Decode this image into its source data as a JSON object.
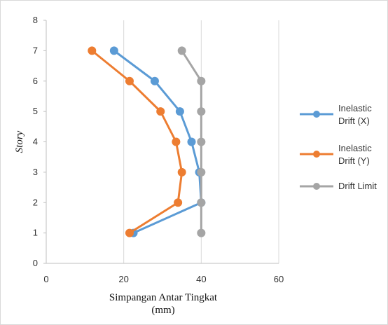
{
  "chart_data": {
    "type": "line",
    "title": "",
    "xlabel_lines": [
      "Simpangan Antar Tingkat",
      "(mm)"
    ],
    "ylabel": "Story",
    "xlim": [
      0,
      60
    ],
    "ylim": [
      0,
      8
    ],
    "x_ticks": [
      0,
      20,
      40,
      60
    ],
    "y_ticks": [
      0,
      1,
      2,
      3,
      4,
      5,
      6,
      7,
      8
    ],
    "grid": "vertical",
    "legend_position": "right",
    "series": [
      {
        "name_lines": [
          "Inelastic",
          "Drift (X)"
        ],
        "color": "#5B9BD5",
        "points": [
          [
            22.5,
            1
          ],
          [
            40,
            2
          ],
          [
            39.5,
            3
          ],
          [
            37.5,
            4
          ],
          [
            34.5,
            5
          ],
          [
            28,
            6
          ],
          [
            17.5,
            7
          ]
        ]
      },
      {
        "name_lines": [
          "Inelastic",
          "Drift (Y)"
        ],
        "color": "#ED7D31",
        "points": [
          [
            21.5,
            1
          ],
          [
            34,
            2
          ],
          [
            35,
            3
          ],
          [
            33.5,
            4
          ],
          [
            29.5,
            5
          ],
          [
            21.5,
            6
          ],
          [
            11.8,
            7
          ]
        ]
      },
      {
        "name_lines": [
          "Drift Limit"
        ],
        "color": "#A5A5A5",
        "points": [
          [
            40,
            1
          ],
          [
            40,
            2
          ],
          [
            40,
            3
          ],
          [
            40,
            4
          ],
          [
            40,
            5
          ],
          [
            40,
            6
          ],
          [
            35,
            7
          ]
        ]
      }
    ]
  }
}
